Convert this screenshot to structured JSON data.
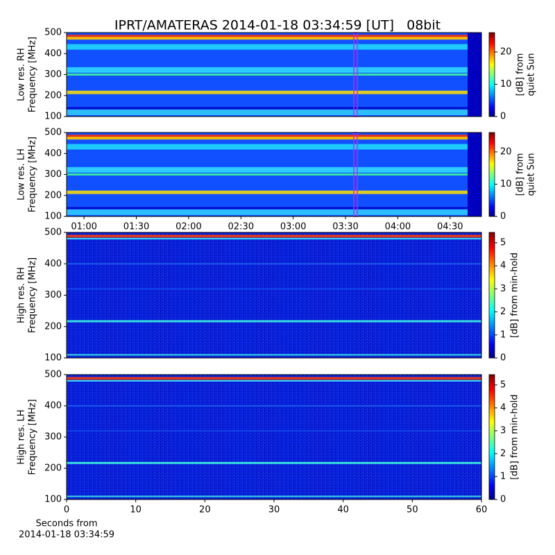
{
  "chart_data": [
    {
      "type": "heatmap",
      "title": "IPRT/AMATERAS 2014-01-18 03:34:59 [UT]   08bit",
      "ylabel": [
        "Low res. RH",
        "Frequency [MHz]"
      ],
      "ylim": [
        100,
        500
      ],
      "yticks": [
        100,
        200,
        300,
        400,
        500
      ],
      "xlim": [
        50,
        288
      ],
      "colorbar_label": [
        "[dB] from",
        "quiet Sun"
      ],
      "clim": [
        0,
        26
      ],
      "cticks": [
        0,
        10,
        20
      ]
    },
    {
      "type": "heatmap",
      "ylabel": [
        "Low res. LH",
        "Frequency [MHz]"
      ],
      "ylim": [
        100,
        500
      ],
      "yticks": [
        100,
        200,
        300,
        400,
        500
      ],
      "xlim": [
        50,
        288
      ],
      "xticks": [
        {
          "value": 60,
          "label": "01:00"
        },
        {
          "value": 90,
          "label": "01:30"
        },
        {
          "value": 120,
          "label": "02:00"
        },
        {
          "value": 150,
          "label": "02:30"
        },
        {
          "value": 180,
          "label": "03:00"
        },
        {
          "value": 210,
          "label": "03:30"
        },
        {
          "value": 240,
          "label": "04:00"
        },
        {
          "value": 270,
          "label": "04:30"
        }
      ],
      "colorbar_label": [
        "[dB] from",
        "quiet Sun"
      ],
      "clim": [
        0,
        26
      ],
      "cticks": [
        0,
        10,
        20
      ]
    },
    {
      "type": "heatmap",
      "ylabel": [
        "High res. RH",
        "Frequency [MHz]"
      ],
      "ylim": [
        100,
        500
      ],
      "yticks": [
        100,
        200,
        300,
        400,
        500
      ],
      "xlim": [
        0,
        60
      ],
      "colorbar_label": [
        "[dB] from min-hold"
      ],
      "clim": [
        0,
        5.45
      ],
      "cticks": [
        0,
        1,
        2,
        3,
        4,
        5
      ]
    },
    {
      "type": "heatmap",
      "ylabel": [
        "High res. LH",
        "Frequency [MHz]"
      ],
      "ylim": [
        100,
        500
      ],
      "yticks": [
        100,
        200,
        300,
        400,
        500
      ],
      "xlim": [
        0,
        60
      ],
      "xticks": [
        0,
        10,
        20,
        30,
        40,
        50,
        60
      ],
      "xlabel": [
        "Seconds from",
        "2014-01-18 03:34:59"
      ],
      "colorbar_label": [
        "[dB] from min-hold"
      ],
      "clim": [
        0,
        5.45
      ],
      "cticks": [
        0,
        1,
        2,
        3,
        4,
        5
      ]
    }
  ]
}
